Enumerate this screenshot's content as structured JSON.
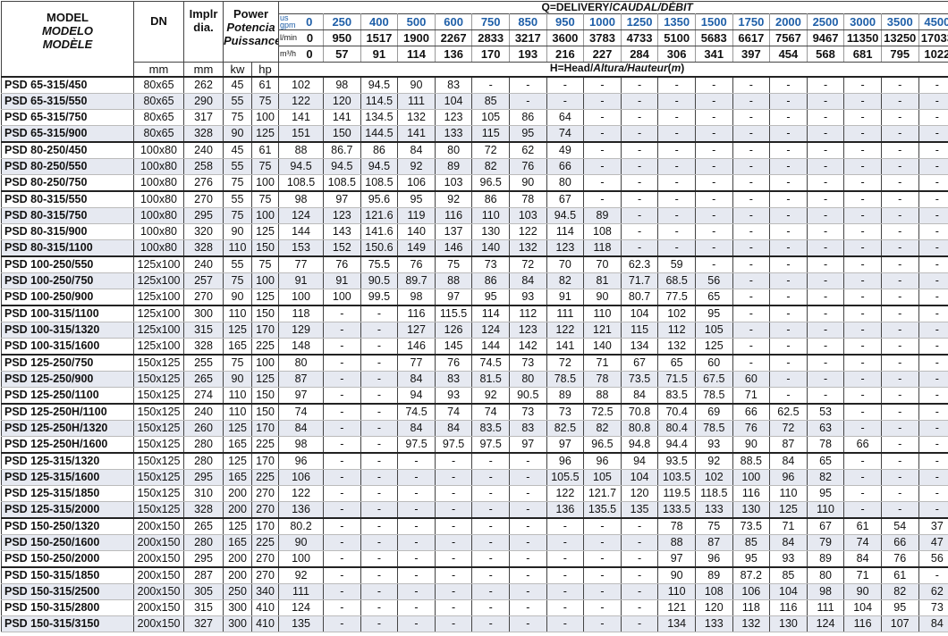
{
  "header": {
    "model": [
      "MODEL",
      "MODELO",
      "MODÈLE"
    ],
    "dn": [
      "DN",
      "mm"
    ],
    "impeller": [
      "Implr",
      "dia.",
      "mm"
    ],
    "power": [
      "Power",
      "Potencia",
      "Puissance"
    ],
    "kw": "kw",
    "hp": "hp",
    "delivery": [
      "Q=DELIVERY/",
      "CAUDAL/DÉBIT"
    ],
    "gpm_unit": [
      "us",
      "gpm"
    ],
    "lmin_unit": "l/min",
    "m3h_unit": "m³/h",
    "head": [
      "H=Head/",
      "Altura/Hauteur",
      "(",
      "m",
      ")"
    ]
  },
  "flow": {
    "gpm": [
      0,
      250,
      400,
      500,
      600,
      750,
      850,
      950,
      1000,
      1250,
      1350,
      1500,
      1750,
      2000,
      2500,
      3000,
      3500,
      4500
    ],
    "lmin": [
      0,
      950,
      1517,
      1900,
      2267,
      2833,
      3217,
      3600,
      3783,
      4733,
      5100,
      5683,
      6617,
      7567,
      9467,
      11350,
      13250,
      17033
    ],
    "m3h": [
      0,
      57,
      91,
      114,
      136,
      170,
      193,
      216,
      227,
      284,
      306,
      341,
      397,
      454,
      568,
      681,
      795,
      1022
    ]
  },
  "groups": [
    {
      "rows": [
        {
          "model": "PSD 65-315/450",
          "dn": "80x65",
          "impeller": 262,
          "kw": 45,
          "hp": 61,
          "head": [
            "102",
            "98",
            "94.5",
            "90",
            "83",
            "-",
            "-",
            "-",
            "-",
            "-",
            "-",
            "-",
            "-",
            "-",
            "-",
            "-",
            "-",
            "-"
          ]
        },
        {
          "model": "PSD 65-315/550",
          "dn": "80x65",
          "impeller": 290,
          "kw": 55,
          "hp": 75,
          "head": [
            "122",
            "120",
            "114.5",
            "111",
            "104",
            "85",
            "-",
            "-",
            "-",
            "-",
            "-",
            "-",
            "-",
            "-",
            "-",
            "-",
            "-",
            "-"
          ]
        },
        {
          "model": "PSD 65-315/750",
          "dn": "80x65",
          "impeller": 317,
          "kw": 75,
          "hp": 100,
          "head": [
            "141",
            "141",
            "134.5",
            "132",
            "123",
            "105",
            "86",
            "64",
            "-",
            "-",
            "-",
            "-",
            "-",
            "-",
            "-",
            "-",
            "-",
            "-"
          ]
        },
        {
          "model": "PSD 65-315/900",
          "dn": "80x65",
          "impeller": 328,
          "kw": 90,
          "hp": 125,
          "head": [
            "151",
            "150",
            "144.5",
            "141",
            "133",
            "115",
            "95",
            "74",
            "-",
            "-",
            "-",
            "-",
            "-",
            "-",
            "-",
            "-",
            "-",
            "-"
          ]
        }
      ]
    },
    {
      "rows": [
        {
          "model": "PSD 80-250/450",
          "dn": "100x80",
          "impeller": 240,
          "kw": 45,
          "hp": 61,
          "head": [
            "88",
            "86.7",
            "86",
            "84",
            "80",
            "72",
            "62",
            "49",
            "-",
            "-",
            "-",
            "-",
            "-",
            "-",
            "-",
            "-",
            "-",
            "-"
          ]
        },
        {
          "model": "PSD 80-250/550",
          "dn": "100x80",
          "impeller": 258,
          "kw": 55,
          "hp": 75,
          "head": [
            "94.5",
            "94.5",
            "94.5",
            "92",
            "89",
            "82",
            "76",
            "66",
            "-",
            "-",
            "-",
            "-",
            "-",
            "-",
            "-",
            "-",
            "-",
            "-"
          ]
        },
        {
          "model": "PSD 80-250/750",
          "dn": "100x80",
          "impeller": 276,
          "kw": 75,
          "hp": 100,
          "head": [
            "108.5",
            "108.5",
            "108.5",
            "106",
            "103",
            "96.5",
            "90",
            "80",
            "-",
            "-",
            "-",
            "-",
            "-",
            "-",
            "-",
            "-",
            "-",
            "-"
          ]
        }
      ]
    },
    {
      "rows": [
        {
          "model": "PSD 80-315/550",
          "dn": "100x80",
          "impeller": 270,
          "kw": 55,
          "hp": 75,
          "head": [
            "98",
            "97",
            "95.6",
            "95",
            "92",
            "86",
            "78",
            "67",
            "-",
            "-",
            "-",
            "-",
            "-",
            "-",
            "-",
            "-",
            "-",
            "-"
          ]
        },
        {
          "model": "PSD 80-315/750",
          "dn": "100x80",
          "impeller": 295,
          "kw": 75,
          "hp": 100,
          "head": [
            "124",
            "123",
            "121.6",
            "119",
            "116",
            "110",
            "103",
            "94.5",
            "89",
            "-",
            "-",
            "-",
            "-",
            "-",
            "-",
            "-",
            "-",
            "-"
          ]
        },
        {
          "model": "PSD 80-315/900",
          "dn": "100x80",
          "impeller": 320,
          "kw": 90,
          "hp": 125,
          "head": [
            "144",
            "143",
            "141.6",
            "140",
            "137",
            "130",
            "122",
            "114",
            "108",
            "-",
            "-",
            "-",
            "-",
            "-",
            "-",
            "-",
            "-",
            "-"
          ]
        },
        {
          "model": "PSD 80-315/1100",
          "dn": "100x80",
          "impeller": 328,
          "kw": 110,
          "hp": 150,
          "head": [
            "153",
            "152",
            "150.6",
            "149",
            "146",
            "140",
            "132",
            "123",
            "118",
            "-",
            "-",
            "-",
            "-",
            "-",
            "-",
            "-",
            "-",
            "-"
          ]
        }
      ]
    },
    {
      "rows": [
        {
          "model": "PSD 100-250/550",
          "dn": "125x100",
          "impeller": 240,
          "kw": 55,
          "hp": 75,
          "head": [
            "77",
            "76",
            "75.5",
            "76",
            "75",
            "73",
            "72",
            "70",
            "70",
            "62.3",
            "59",
            "-",
            "-",
            "-",
            "-",
            "-",
            "-",
            "-"
          ]
        },
        {
          "model": "PSD 100-250/750",
          "dn": "125x100",
          "impeller": 257,
          "kw": 75,
          "hp": 100,
          "head": [
            "91",
            "91",
            "90.5",
            "89.7",
            "88",
            "86",
            "84",
            "82",
            "81",
            "71.7",
            "68.5",
            "56",
            "-",
            "-",
            "-",
            "-",
            "-",
            "-"
          ]
        },
        {
          "model": "PSD 100-250/900",
          "dn": "125x100",
          "impeller": 270,
          "kw": 90,
          "hp": 125,
          "head": [
            "100",
            "100",
            "99.5",
            "98",
            "97",
            "95",
            "93",
            "91",
            "90",
            "80.7",
            "77.5",
            "65",
            "-",
            "-",
            "-",
            "-",
            "-",
            "-"
          ]
        }
      ]
    },
    {
      "rows": [
        {
          "model": "PSD 100-315/1100",
          "dn": "125x100",
          "impeller": 300,
          "kw": 110,
          "hp": 150,
          "head": [
            "118",
            "-",
            "-",
            "116",
            "115.5",
            "114",
            "112",
            "111",
            "110",
            "104",
            "102",
            "95",
            "-",
            "-",
            "-",
            "-",
            "-",
            "-"
          ]
        },
        {
          "model": "PSD 100-315/1320",
          "dn": "125x100",
          "impeller": 315,
          "kw": 125,
          "hp": 170,
          "head": [
            "129",
            "-",
            "-",
            "127",
            "126",
            "124",
            "123",
            "122",
            "121",
            "115",
            "112",
            "105",
            "-",
            "-",
            "-",
            "-",
            "-",
            "-"
          ]
        },
        {
          "model": "PSD 100-315/1600",
          "dn": "125x100",
          "impeller": 328,
          "kw": 165,
          "hp": 225,
          "head": [
            "148",
            "-",
            "-",
            "146",
            "145",
            "144",
            "142",
            "141",
            "140",
            "134",
            "132",
            "125",
            "-",
            "-",
            "-",
            "-",
            "-",
            "-"
          ]
        }
      ]
    },
    {
      "rows": [
        {
          "model": "PSD 125-250/750",
          "dn": "150x125",
          "impeller": 255,
          "kw": 75,
          "hp": 100,
          "head": [
            "80",
            "-",
            "-",
            "77",
            "76",
            "74.5",
            "73",
            "72",
            "71",
            "67",
            "65",
            "60",
            "-",
            "-",
            "-",
            "-",
            "-",
            "-"
          ]
        },
        {
          "model": "PSD 125-250/900",
          "dn": "150x125",
          "impeller": 265,
          "kw": 90,
          "hp": 125,
          "head": [
            "87",
            "-",
            "-",
            "84",
            "83",
            "81.5",
            "80",
            "78.5",
            "78",
            "73.5",
            "71.5",
            "67.5",
            "60",
            "-",
            "-",
            "-",
            "-",
            "-"
          ]
        },
        {
          "model": "PSD 125-250/1100",
          "dn": "150x125",
          "impeller": 274,
          "kw": 110,
          "hp": 150,
          "head": [
            "97",
            "-",
            "-",
            "94",
            "93",
            "92",
            "90.5",
            "89",
            "88",
            "84",
            "83.5",
            "78.5",
            "71",
            "-",
            "-",
            "-",
            "-",
            "-"
          ]
        }
      ]
    },
    {
      "rows": [
        {
          "model": "PSD 125-250H/1100",
          "dn": "150x125",
          "impeller": 240,
          "kw": 110,
          "hp": 150,
          "head": [
            "74",
            "-",
            "-",
            "74.5",
            "74",
            "74",
            "73",
            "73",
            "72.5",
            "70.8",
            "70.4",
            "69",
            "66",
            "62.5",
            "53",
            "-",
            "-",
            "-"
          ]
        },
        {
          "model": "PSD 125-250H/1320",
          "dn": "150x125",
          "impeller": 260,
          "kw": 125,
          "hp": 170,
          "head": [
            "84",
            "-",
            "-",
            "84",
            "84",
            "83.5",
            "83",
            "82.5",
            "82",
            "80.8",
            "80.4",
            "78.5",
            "76",
            "72",
            "63",
            "-",
            "-",
            "-"
          ]
        },
        {
          "model": "PSD 125-250H/1600",
          "dn": "150x125",
          "impeller": 280,
          "kw": 165,
          "hp": 225,
          "head": [
            "98",
            "-",
            "-",
            "97.5",
            "97.5",
            "97.5",
            "97",
            "97",
            "96.5",
            "94.8",
            "94.4",
            "93",
            "90",
            "87",
            "78",
            "66",
            "-",
            "-"
          ]
        }
      ]
    },
    {
      "rows": [
        {
          "model": "PSD 125-315/1320",
          "dn": "150x125",
          "impeller": 280,
          "kw": 125,
          "hp": 170,
          "head": [
            "96",
            "-",
            "-",
            "-",
            "-",
            "-",
            "-",
            "96",
            "96",
            "94",
            "93.5",
            "92",
            "88.5",
            "84",
            "65",
            "-",
            "-",
            "-"
          ]
        },
        {
          "model": "PSD 125-315/1600",
          "dn": "150x125",
          "impeller": 295,
          "kw": 165,
          "hp": 225,
          "head": [
            "106",
            "-",
            "-",
            "-",
            "-",
            "-",
            "-",
            "105.5",
            "105",
            "104",
            "103.5",
            "102",
            "100",
            "96",
            "82",
            "-",
            "-",
            "-"
          ]
        },
        {
          "model": "PSD 125-315/1850",
          "dn": "150x125",
          "impeller": 310,
          "kw": 200,
          "hp": 270,
          "head": [
            "122",
            "-",
            "-",
            "-",
            "-",
            "-",
            "-",
            "122",
            "121.7",
            "120",
            "119.5",
            "118.5",
            "116",
            "110",
            "95",
            "-",
            "-",
            "-"
          ]
        },
        {
          "model": "PSD 125-315/2000",
          "dn": "150x125",
          "impeller": 328,
          "kw": 200,
          "hp": 270,
          "head": [
            "136",
            "-",
            "-",
            "-",
            "-",
            "-",
            "-",
            "136",
            "135.5",
            "135",
            "133.5",
            "133",
            "130",
            "125",
            "110",
            "-",
            "-",
            "-"
          ]
        }
      ]
    },
    {
      "rows": [
        {
          "model": "PSD 150-250/1320",
          "dn": "200x150",
          "impeller": 265,
          "kw": 125,
          "hp": 170,
          "head": [
            "80.2",
            "-",
            "-",
            "-",
            "-",
            "-",
            "-",
            "-",
            "-",
            "-",
            "78",
            "75",
            "73.5",
            "71",
            "67",
            "61",
            "54",
            "37"
          ]
        },
        {
          "model": "PSD 150-250/1600",
          "dn": "200x150",
          "impeller": 280,
          "kw": 165,
          "hp": 225,
          "head": [
            "90",
            "-",
            "-",
            "-",
            "-",
            "-",
            "-",
            "-",
            "-",
            "-",
            "88",
            "87",
            "85",
            "84",
            "79",
            "74",
            "66",
            "47"
          ]
        },
        {
          "model": "PSD 150-250/2000",
          "dn": "200x150",
          "impeller": 295,
          "kw": 200,
          "hp": 270,
          "head": [
            "100",
            "-",
            "-",
            "-",
            "-",
            "-",
            "-",
            "-",
            "-",
            "-",
            "97",
            "96",
            "95",
            "93",
            "89",
            "84",
            "76",
            "56"
          ]
        }
      ]
    },
    {
      "rows": [
        {
          "model": "PSD 150-315/1850",
          "dn": "200x150",
          "impeller": 287,
          "kw": 200,
          "hp": 270,
          "head": [
            "92",
            "-",
            "-",
            "-",
            "-",
            "-",
            "-",
            "-",
            "-",
            "-",
            "90",
            "89",
            "87.2",
            "85",
            "80",
            "71",
            "61",
            "-"
          ]
        },
        {
          "model": "PSD 150-315/2500",
          "dn": "200x150",
          "impeller": 305,
          "kw": 250,
          "hp": 340,
          "head": [
            "111",
            "-",
            "-",
            "-",
            "-",
            "-",
            "-",
            "-",
            "-",
            "-",
            "110",
            "108",
            "106",
            "104",
            "98",
            "90",
            "82",
            "62"
          ]
        },
        {
          "model": "PSD 150-315/2800",
          "dn": "200x150",
          "impeller": 315,
          "kw": 300,
          "hp": 410,
          "head": [
            "124",
            "-",
            "-",
            "-",
            "-",
            "-",
            "-",
            "-",
            "-",
            "-",
            "121",
            "120",
            "118",
            "116",
            "111",
            "104",
            "95",
            "73"
          ]
        },
        {
          "model": "PSD 150-315/3150",
          "dn": "200x150",
          "impeller": 327,
          "kw": 300,
          "hp": 410,
          "head": [
            "135",
            "-",
            "-",
            "-",
            "-",
            "-",
            "-",
            "-",
            "-",
            "-",
            "134",
            "133",
            "132",
            "130",
            "124",
            "116",
            "107",
            "84"
          ]
        }
      ]
    }
  ]
}
